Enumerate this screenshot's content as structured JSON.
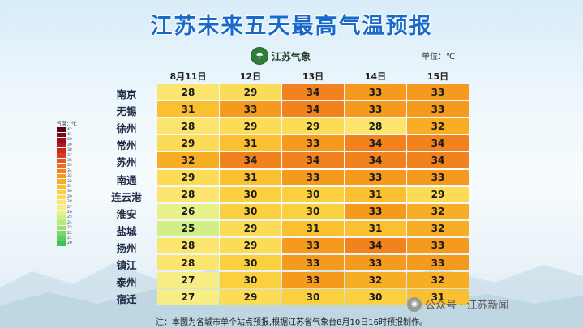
{
  "title": "江苏未来五天最高气温预报",
  "logo_text": "江苏气象",
  "unit_label": "单位：℃",
  "dates": [
    "8月11日",
    "12日",
    "13日",
    "14日",
    "15日"
  ],
  "legend": {
    "title": "气温：℃",
    "levels": [
      {
        "label": "42",
        "color": "#5a0012"
      },
      {
        "label": "41",
        "color": "#7a0a18"
      },
      {
        "label": "40",
        "color": "#960f1c"
      },
      {
        "label": "39",
        "color": "#b01b1e"
      },
      {
        "label": "38",
        "color": "#c82a20"
      },
      {
        "label": "37",
        "color": "#dc3d22"
      },
      {
        "label": "36",
        "color": "#e85625"
      },
      {
        "label": "35",
        "color": "#ef6e22"
      },
      {
        "label": "34",
        "color": "#f2821e"
      },
      {
        "label": "33",
        "color": "#f59a1c"
      },
      {
        "label": "32",
        "color": "#f8ae24"
      },
      {
        "label": "31",
        "color": "#fac030"
      },
      {
        "label": "30",
        "color": "#fbd03e"
      },
      {
        "label": "29",
        "color": "#fcdc56"
      },
      {
        "label": "28",
        "color": "#fce56e"
      },
      {
        "label": "27",
        "color": "#f6ee84"
      },
      {
        "label": "26",
        "color": "#e8f08a"
      },
      {
        "label": "25",
        "color": "#d2ee86"
      },
      {
        "label": "24",
        "color": "#b6e87c"
      },
      {
        "label": "23",
        "color": "#98e072"
      },
      {
        "label": "22",
        "color": "#7ad86a"
      },
      {
        "label": "21",
        "color": "#5cce62"
      },
      {
        "label": "20",
        "color": "#3fc45a"
      }
    ]
  },
  "rows": [
    {
      "city": "南京",
      "temps": [
        28,
        29,
        34,
        33,
        33
      ]
    },
    {
      "city": "无锡",
      "temps": [
        31,
        33,
        34,
        33,
        33
      ]
    },
    {
      "city": "徐州",
      "temps": [
        28,
        29,
        29,
        28,
        32
      ]
    },
    {
      "city": "常州",
      "temps": [
        29,
        31,
        33,
        34,
        34
      ]
    },
    {
      "city": "苏州",
      "temps": [
        32,
        34,
        34,
        34,
        34
      ]
    },
    {
      "city": "南通",
      "temps": [
        29,
        31,
        33,
        33,
        33
      ]
    },
    {
      "city": "连云港",
      "temps": [
        28,
        30,
        30,
        31,
        29
      ]
    },
    {
      "city": "淮安",
      "temps": [
        26,
        30,
        30,
        33,
        32
      ]
    },
    {
      "city": "盐城",
      "temps": [
        25,
        29,
        31,
        31,
        32
      ]
    },
    {
      "city": "扬州",
      "temps": [
        28,
        29,
        33,
        34,
        33
      ]
    },
    {
      "city": "镇江",
      "temps": [
        28,
        30,
        33,
        33,
        33
      ]
    },
    {
      "city": "泰州",
      "temps": [
        27,
        30,
        33,
        32,
        32
      ]
    },
    {
      "city": "宿迁",
      "temps": [
        27,
        29,
        30,
        30,
        31
      ]
    }
  ],
  "note": "注：本图为各城市单个站点预报,根据江苏省气象台8月10日16时预报制作。",
  "watermark": "公众号 · 江苏新闻"
}
